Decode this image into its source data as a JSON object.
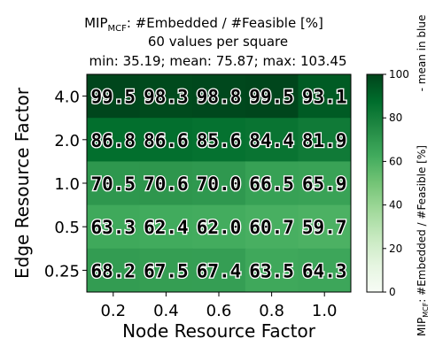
{
  "chart_data": {
    "type": "heatmap",
    "title_lines": [
      {
        "pre": "MIP",
        "sub": "MCF",
        "post": ": #Embedded / #Feasible [%]"
      },
      {
        "pre": "60 values per square",
        "sub": "",
        "post": ""
      },
      {
        "pre": "min: 35.19; mean: 75.87; max: 103.45",
        "sub": "",
        "post": ""
      }
    ],
    "xlabel": "Node Resource Factor",
    "ylabel": "Edge Resource Factor",
    "x_categories": [
      "0.2",
      "0.4",
      "0.6",
      "0.8",
      "1.0"
    ],
    "y_categories": [
      "4.0",
      "2.0",
      "1.0",
      "0.5",
      "0.25"
    ],
    "values": [
      [
        99.5,
        98.3,
        98.8,
        99.5,
        93.1
      ],
      [
        86.8,
        86.6,
        85.6,
        84.4,
        81.9
      ],
      [
        70.5,
        70.6,
        70.0,
        66.5,
        65.9
      ],
      [
        63.3,
        62.4,
        62.0,
        60.7,
        59.7
      ],
      [
        68.2,
        67.5,
        67.4,
        63.5,
        64.3
      ]
    ],
    "value_labels": [
      [
        "99.5",
        "98.3",
        "98.8",
        "99.5",
        "93.1"
      ],
      [
        "86.8",
        "86.6",
        "85.6",
        "84.4",
        "81.9"
      ],
      [
        "70.5",
        "70.6",
        "70.0",
        "66.5",
        "65.9"
      ],
      [
        "63.3",
        "62.4",
        "62.0",
        "60.7",
        "59.7"
      ],
      [
        "68.2",
        "67.5",
        "67.4",
        "63.5",
        "64.3"
      ]
    ],
    "colorbar": {
      "min": 0,
      "max": 100,
      "ticks": [
        "0",
        "20",
        "40",
        "60",
        "80",
        "100"
      ],
      "label": {
        "pre": "MIP",
        "sub": "MCF",
        "post": ": #Embedded / #Feasible [%]"
      },
      "side_note": "- mean in blue"
    },
    "colors": {
      "scale": [
        "#f7fcf5",
        "#e5f5e0",
        "#c7e9c0",
        "#a1d99b",
        "#74c476",
        "#41ab5d",
        "#238b45",
        "#006d2c",
        "#00441b"
      ]
    }
  }
}
